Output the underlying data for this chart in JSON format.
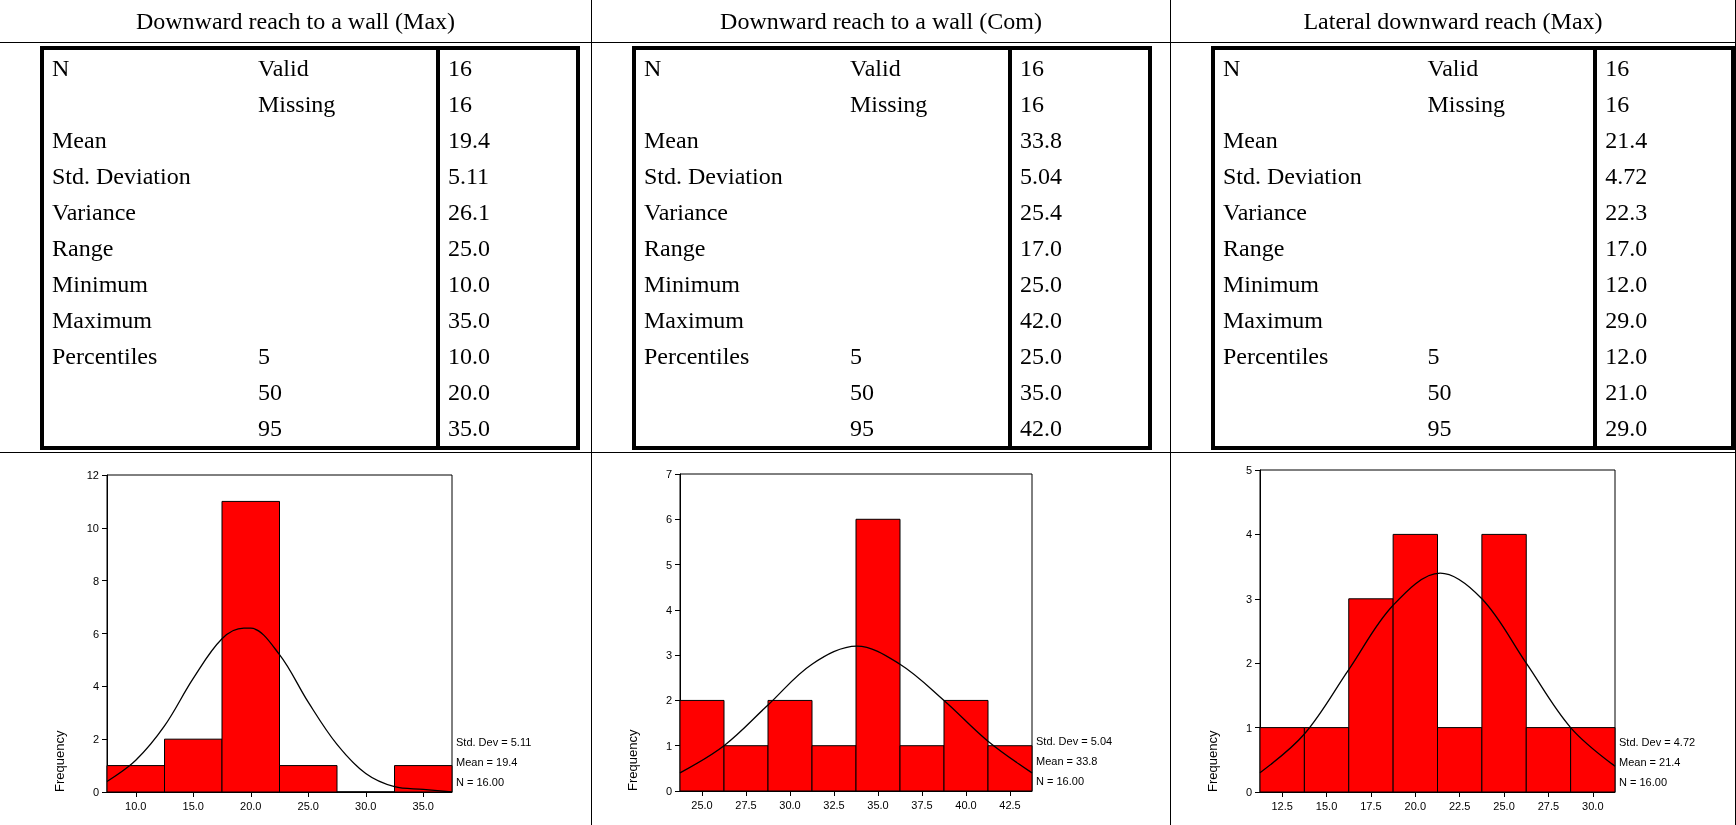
{
  "chart_data": [
    {
      "type": "other",
      "title": "Downward reach to a wall (Max)",
      "cell_labels": [
        [
          "N",
          "Valid",
          "16"
        ],
        [
          null,
          "Missing",
          "16"
        ],
        [
          "Mean",
          null,
          "19.4"
        ],
        [
          "Std. Deviation",
          null,
          "5.11"
        ],
        [
          "Variance",
          null,
          "26.1"
        ],
        [
          "Range",
          null,
          "25.0"
        ],
        [
          "Minimum",
          null,
          "10.0"
        ],
        [
          "Maximum",
          null,
          "35.0"
        ],
        [
          "Percentiles",
          "5",
          "10.0"
        ],
        [
          null,
          "50",
          "20.0"
        ],
        [
          null,
          "95",
          "35.0"
        ]
      ]
    },
    {
      "type": "other",
      "title": "Downward reach to a wall (Com)",
      "cell_labels": [
        [
          "N",
          "Valid",
          "16"
        ],
        [
          null,
          "Missing",
          "16"
        ],
        [
          "Mean",
          null,
          "33.8"
        ],
        [
          "Std. Deviation",
          null,
          "5.04"
        ],
        [
          "Variance",
          null,
          "25.4"
        ],
        [
          "Range",
          null,
          "17.0"
        ],
        [
          "Minimum",
          null,
          "25.0"
        ],
        [
          "Maximum",
          null,
          "42.0"
        ],
        [
          "Percentiles",
          "5",
          "25.0"
        ],
        [
          null,
          "50",
          "35.0"
        ],
        [
          null,
          "95",
          "42.0"
        ]
      ]
    },
    {
      "type": "other",
      "title": "Lateral downward reach (Max)",
      "cell_labels": [
        [
          "N",
          "Valid",
          "16"
        ],
        [
          null,
          "Missing",
          "16"
        ],
        [
          "Mean",
          null,
          "21.4"
        ],
        [
          "Std. Deviation",
          null,
          "4.72"
        ],
        [
          "Variance",
          null,
          "22.3"
        ],
        [
          "Range",
          null,
          "17.0"
        ],
        [
          "Minimum",
          null,
          "12.0"
        ],
        [
          "Maximum",
          null,
          "29.0"
        ],
        [
          "Percentiles",
          "5",
          "12.0"
        ],
        [
          null,
          "50",
          "21.0"
        ],
        [
          null,
          "95",
          "29.0"
        ]
      ]
    },
    {
      "type": "histogram",
      "ylabel": "Frequency",
      "xlim": [
        7.5,
        37.5
      ],
      "xticks": [
        {
          "value": 10,
          "label": "10.0"
        },
        {
          "value": 15,
          "label": "15.0"
        },
        {
          "value": 20,
          "label": "20.0"
        },
        {
          "value": 25,
          "label": "25.0"
        },
        {
          "value": 30,
          "label": "30.0"
        },
        {
          "value": 35,
          "label": "35.0"
        }
      ],
      "ylim": [
        0,
        12
      ],
      "yticks": [
        0,
        2,
        4,
        6,
        8,
        10,
        12
      ],
      "grid": false,
      "series": [
        {
          "type": "histogram",
          "color": "#ff0000",
          "bins": [
            7.5,
            12.5,
            17.5,
            22.5,
            27.5,
            32.5,
            37.5
          ],
          "values": [
            1,
            2,
            11,
            1,
            0,
            1
          ]
        },
        {
          "type": "line",
          "color": "#000000",
          "marker": "none",
          "line_style": "solid",
          "x": [
            7.5,
            10,
            12.5,
            15,
            17.5,
            19.4,
            20,
            22.5,
            25,
            27.5,
            30,
            32.5,
            35,
            37.5
          ],
          "values": [
            0.4,
            1.2,
            2.5,
            4.3,
            5.8,
            6.2,
            6.2,
            5.2,
            3.4,
            1.8,
            0.7,
            0.2,
            0.1,
            0
          ]
        }
      ],
      "annotations": [
        "Std. Dev = 5.11",
        "Mean = 19.4",
        "N = 16.00"
      ]
    },
    {
      "type": "histogram",
      "ylabel": "Frequency",
      "xlim": [
        23.75,
        43.75
      ],
      "xticks": [
        {
          "value": 25,
          "label": "25.0"
        },
        {
          "value": 27.5,
          "label": "27.5"
        },
        {
          "value": 30,
          "label": "30.0"
        },
        {
          "value": 32.5,
          "label": "32.5"
        },
        {
          "value": 35,
          "label": "35.0"
        },
        {
          "value": 37.5,
          "label": "37.5"
        },
        {
          "value": 40,
          "label": "40.0"
        },
        {
          "value": 42.5,
          "label": "42.5"
        }
      ],
      "ylim": [
        0,
        7
      ],
      "yticks": [
        0,
        1,
        2,
        3,
        4,
        5,
        6,
        7
      ],
      "grid": false,
      "series": [
        {
          "type": "histogram",
          "color": "#ff0000",
          "bins": [
            23.75,
            26.25,
            28.75,
            31.25,
            33.75,
            36.25,
            38.75,
            41.25,
            43.75
          ],
          "values": [
            2,
            1,
            2,
            1,
            6,
            1,
            2,
            1
          ]
        },
        {
          "type": "line",
          "color": "#000000",
          "marker": "none",
          "line_style": "solid",
          "x": [
            23.75,
            26.25,
            28.75,
            31.25,
            33.8,
            36.25,
            38.75,
            41.25,
            43.75
          ],
          "values": [
            0.4,
            1.0,
            1.9,
            2.8,
            3.2,
            2.8,
            2.0,
            1.1,
            0.4
          ]
        }
      ],
      "annotations": [
        "Std. Dev = 5.04",
        "Mean = 33.8",
        "N = 16.00"
      ]
    },
    {
      "type": "histogram",
      "ylabel": "Frequency",
      "xlim": [
        11.25,
        31.25
      ],
      "xticks": [
        {
          "value": 12.5,
          "label": "12.5"
        },
        {
          "value": 15,
          "label": "15.0"
        },
        {
          "value": 17.5,
          "label": "17.5"
        },
        {
          "value": 20,
          "label": "20.0"
        },
        {
          "value": 22.5,
          "label": "22.5"
        },
        {
          "value": 25,
          "label": "25.0"
        },
        {
          "value": 27.5,
          "label": "27.5"
        },
        {
          "value": 30,
          "label": "30.0"
        }
      ],
      "ylim": [
        0,
        5
      ],
      "yticks": [
        0,
        1,
        2,
        3,
        4,
        5
      ],
      "grid": false,
      "series": [
        {
          "type": "histogram",
          "color": "#ff0000",
          "bins": [
            11.25,
            13.75,
            16.25,
            18.75,
            21.25,
            23.75,
            26.25,
            28.75,
            31.25
          ],
          "values": [
            1,
            1,
            3,
            4,
            1,
            4,
            1,
            1
          ]
        },
        {
          "type": "line",
          "color": "#000000",
          "marker": "none",
          "line_style": "solid",
          "x": [
            11.25,
            13.75,
            16.25,
            18.75,
            21.4,
            23.75,
            26.25,
            28.75,
            31.25
          ],
          "values": [
            0.3,
            0.9,
            1.9,
            2.9,
            3.4,
            3.0,
            2.0,
            1.0,
            0.4
          ]
        }
      ],
      "annotations": [
        "Std. Dev = 4.72",
        "Mean = 21.4",
        "N = 16.00"
      ]
    }
  ]
}
